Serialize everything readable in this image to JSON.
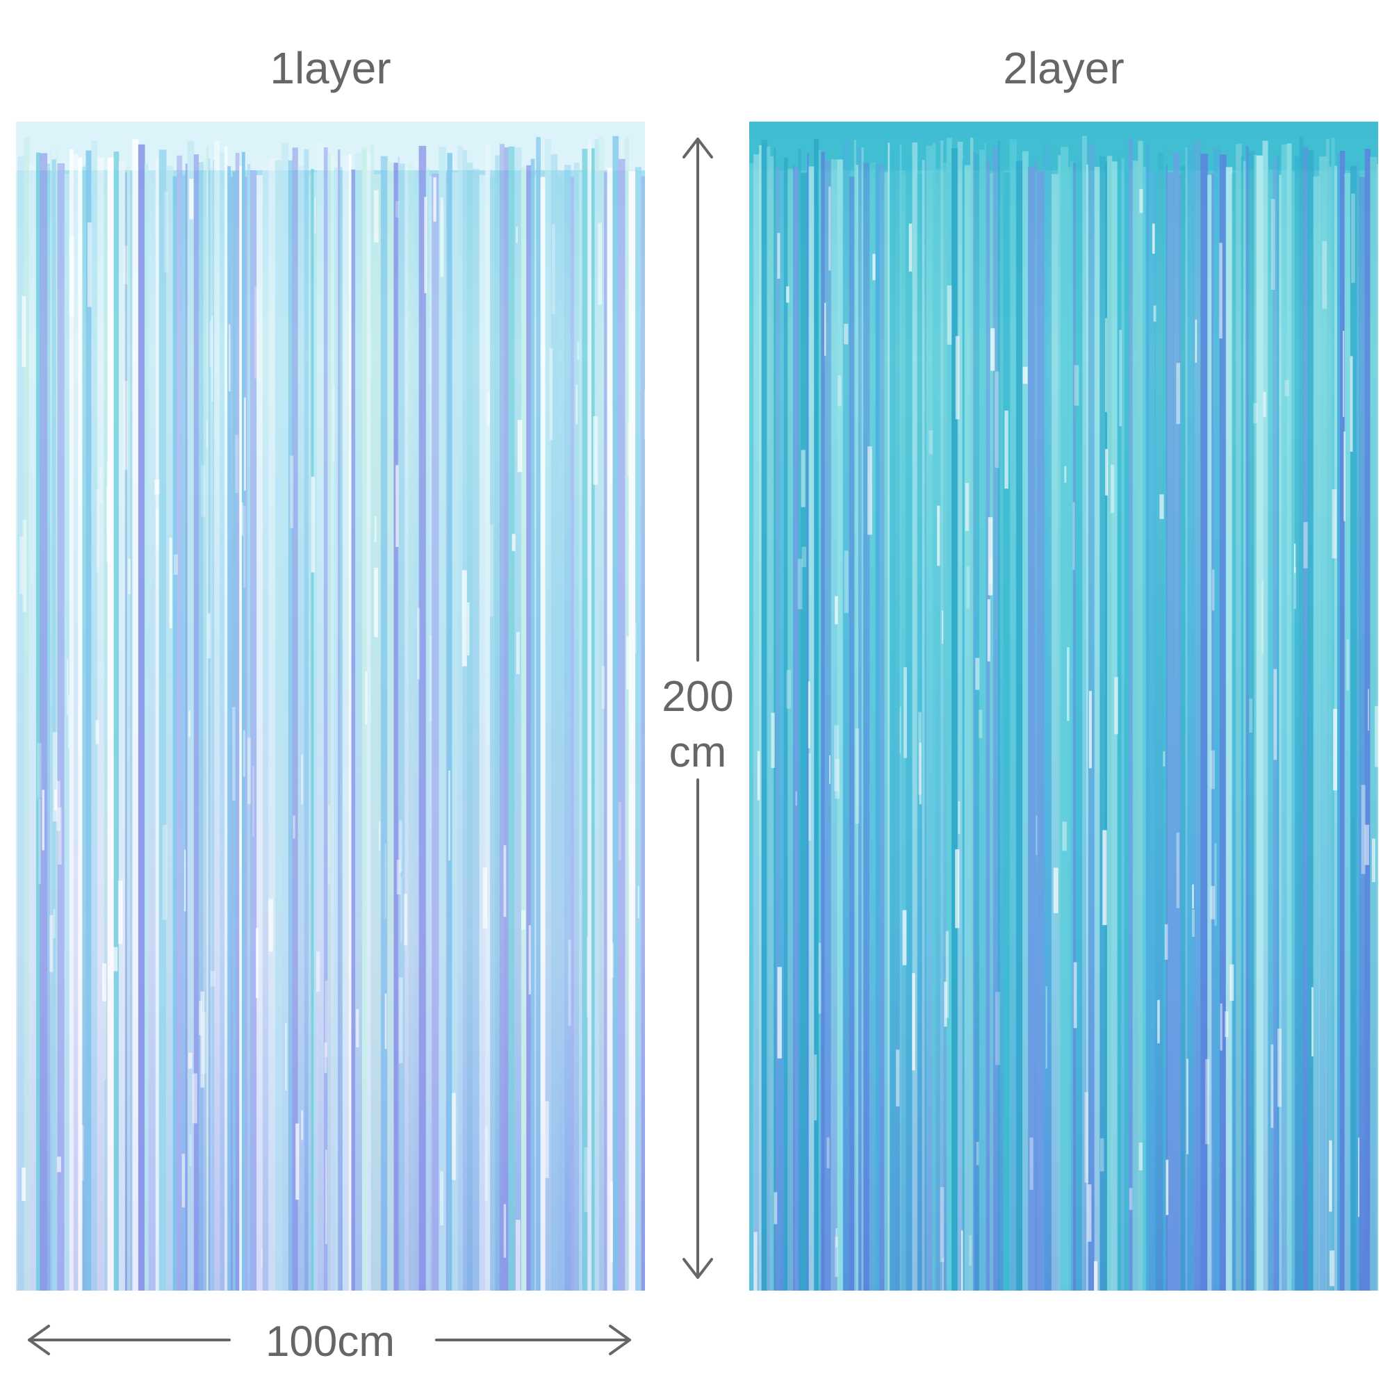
{
  "labels": {
    "left": "1layer",
    "right": "2layer"
  },
  "dimensions": {
    "height_value": "200",
    "height_unit": "cm",
    "width": "100cm"
  },
  "colors": {
    "text": "#666666",
    "arrow": "#666666",
    "one_layer_tint": "#a9dcf0",
    "two_layer_tint": "#4cc3d5",
    "iridescent_purple": "#8f8ee8"
  }
}
